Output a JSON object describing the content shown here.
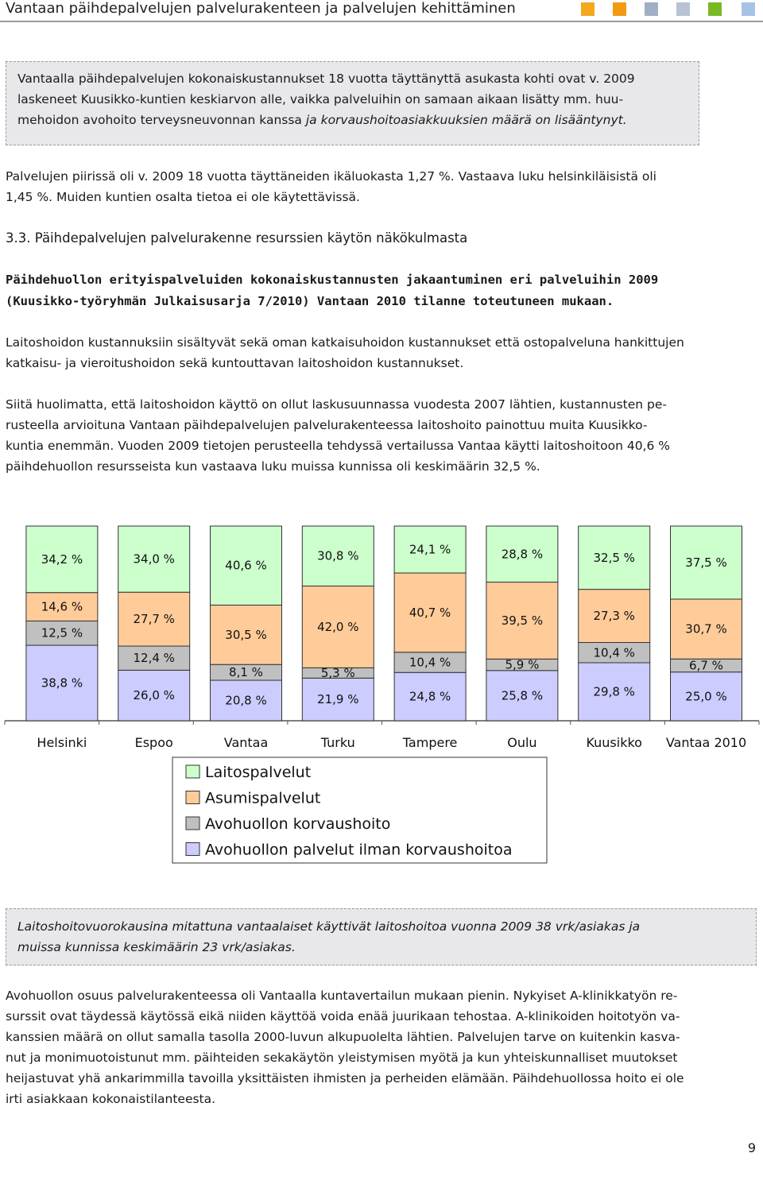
{
  "header": {
    "title": "Vantaan päihdepalvelujen palvelurakenteen ja palvelujen kehittäminen",
    "square_colors": [
      "#f5a81c",
      "#f39a10",
      "#9fb0c6",
      "#b7c3d3",
      "#7ab826",
      "#a6c3e6"
    ]
  },
  "highlight_box_1": {
    "lines": [
      "Vantaalla päihdepalvelujen kokonaiskustannukset 18 vuotta täyttänyttä asukasta kohti ovat v. 2009",
      "laskeneet Kuusikko-kuntien keskiarvon alle, vaikka palveluihin on samaan aikaan lisätty mm. huu-"
    ],
    "line3_normal": "mehoidon avohoito terveysneuvonnan kanssa ",
    "line3_italic": "ja korvaushoitoasiakkuuksien määrä on lisääntynyt."
  },
  "paragraph_1": {
    "line1": "Palvelujen piirissä oli v. 2009 18 vuotta täyttäneiden ikäluokasta 1,27 %. Vastaava luku helsinkiläisistä oli",
    "line2": "1,45 %. Muiden kuntien osalta tietoa ei ole käytettävissä."
  },
  "section_heading": "3.3. Päihdepalvelujen palvelurakenne resurssien käytön näkökulmasta",
  "figure_caption": {
    "line1": "Päihdehuollon erityispalveluiden kokonaiskustannusten jakaantuminen eri palveluihin 2009",
    "line2": "(Kuusikko-työryhmän Julkaisusarja 7/2010) Vantaan 2010 tilanne toteutuneen mukaan."
  },
  "paragraph_2": {
    "line1": "Laitoshoidon kustannuksiin sisältyvät sekä oman katkaisuhoidon kustannukset että ostopalveluna hankittujen",
    "line2": "katkaisu- ja vieroitushoidon sekä  kuntouttavan laitoshoidon kustannukset."
  },
  "paragraph_3": {
    "line1": "Siitä huolimatta, että laitoshoidon käyttö on ollut laskusuunnassa vuodesta 2007 lähtien, kustannusten pe-",
    "line2": "rusteella arvioituna Vantaan päihdepalvelujen palvelurakenteessa laitoshoito painottuu muita Kuusikko-",
    "line3": "kuntia enemmän. Vuoden 2009 tietojen perusteella tehdyssä vertailussa Vantaa käytti laitoshoitoon 40,6 %",
    "line4": "päihdehuollon resursseista kun vastaava luku muissa kunnissa oli keskimäärin 32,5 %."
  },
  "chart_data": {
    "type": "bar",
    "stacked": true,
    "percent_stacked": true,
    "categories": [
      "Helsinki",
      "Espoo",
      "Vantaa",
      "Turku",
      "Tampere",
      "Oulu",
      "Kuusikko",
      "Vantaa 2010"
    ],
    "series": [
      {
        "name": "Avohuollon palvelut ilman korvaushoitoa",
        "color": "#ccccff",
        "values": [
          38.8,
          26.0,
          20.8,
          21.9,
          24.8,
          25.8,
          29.8,
          25.0
        ],
        "labels": [
          "38,8 %",
          "26,0 %",
          "20,8 %",
          "21,9 %",
          "24,8 %",
          "25,8 %",
          "29,8 %",
          "25,0 %"
        ]
      },
      {
        "name": "Avohuollon korvaushoito",
        "color": "#c0c0c0",
        "values": [
          12.5,
          12.4,
          8.1,
          5.3,
          10.4,
          5.9,
          10.4,
          6.7
        ],
        "labels": [
          "12,5 %",
          "12,4 %",
          "8,1 %",
          "5,3 %",
          "10,4 %",
          "5,9 %",
          "10,4 %",
          "6,7 %"
        ]
      },
      {
        "name": "Asumispalvelut",
        "color": "#ffcc99",
        "values": [
          14.6,
          27.7,
          30.5,
          42.0,
          40.7,
          39.5,
          27.3,
          30.7
        ],
        "labels": [
          "14,6 %",
          "27,7 %",
          "30,5 %",
          "42,0 %",
          "40,7 %",
          "39,5 %",
          "27,3 %",
          "30,7 %"
        ]
      },
      {
        "name": "Laitospalvelut",
        "color": "#ccffcc",
        "values": [
          34.2,
          34.0,
          40.6,
          30.8,
          24.1,
          28.8,
          32.5,
          37.5
        ],
        "labels": [
          "34,2 %",
          "34,0 %",
          "40,6 %",
          "30,8 %",
          "24,1 %",
          "28,8 %",
          "32,5 %",
          "37,5 %"
        ]
      }
    ],
    "legend": [
      "Laitospalvelut",
      "Asumispalvelut",
      "Avohuollon korvaushoito",
      "Avohuollon palvelut ilman korvaushoitoa"
    ],
    "legend_placement": "bottom",
    "grid": false
  },
  "highlight_box_2": {
    "line1": "Laitoshoitovuorokausina mitattuna vantaalaiset käyttivät laitoshoitoa vuonna 2009 38 vrk/asiakas ja",
    "line2": "muissa kunnissa keskimäärin 23 vrk/asiakas."
  },
  "paragraph_4": {
    "line1": "Avohuollon osuus palvelurakenteessa oli Vantaalla kuntavertailun mukaan pienin. Nykyiset A-klinikkatyön re-",
    "line2": "surssit ovat täydessä käytössä eikä niiden käyttöä voida enää juurikaan tehostaa. A-klinikoiden hoitotyön va-",
    "line3": "kanssien määrä on ollut samalla tasolla 2000-luvun alkupuolelta lähtien. Palvelujen tarve on kuitenkin kasva-",
    "line4": "nut ja monimuotoistunut mm. päihteiden sekakäytön yleistymisen myötä ja kun yhteiskunnalliset muutokset",
    "line5": "heijastuvat yhä ankarimmilla tavoilla yksittäisten ihmisten ja perheiden elämään. Päihdehuollossa hoito ei ole",
    "line6": "irti asiakkaan kokonaistilanteesta."
  },
  "page_number": "9"
}
